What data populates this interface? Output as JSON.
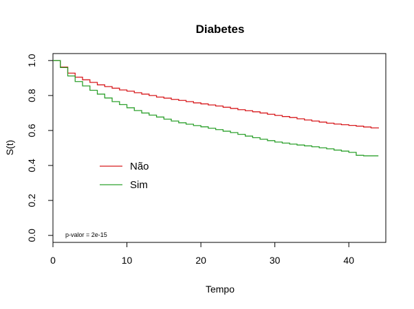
{
  "chart_data": {
    "type": "line",
    "step": true,
    "title": "Diabetes",
    "xlabel": "Tempo",
    "ylabel": "S(t)",
    "xlim": [
      0,
      45
    ],
    "ylim": [
      -0.04,
      1.04
    ],
    "xticks": [
      0,
      10,
      20,
      30,
      40
    ],
    "xtick_labels": [
      "0",
      "10",
      "20",
      "30",
      "40"
    ],
    "yticks": [
      0,
      0.2,
      0.4,
      0.6,
      0.8,
      1
    ],
    "ytick_labels": [
      "0.0",
      "0.2",
      "0.4",
      "0.6",
      "0.8",
      "1.0"
    ],
    "grid": false,
    "legend_position": "left-center",
    "annotation": "p-valor = 2e-15",
    "series": [
      {
        "name": "Não",
        "color": "#d7191c",
        "x": [
          0,
          1,
          2,
          3,
          4,
          5,
          6,
          7,
          8,
          9,
          10,
          11,
          12,
          13,
          14,
          15,
          16,
          17,
          18,
          19,
          20,
          21,
          22,
          23,
          24,
          25,
          26,
          27,
          28,
          29,
          30,
          31,
          32,
          33,
          34,
          35,
          36,
          37,
          38,
          39,
          40,
          41,
          42,
          43,
          44
        ],
        "y": [
          1.0,
          0.963,
          0.928,
          0.905,
          0.89,
          0.875,
          0.861,
          0.851,
          0.842,
          0.832,
          0.825,
          0.816,
          0.808,
          0.8,
          0.791,
          0.785,
          0.778,
          0.772,
          0.765,
          0.758,
          0.752,
          0.746,
          0.74,
          0.733,
          0.726,
          0.719,
          0.713,
          0.707,
          0.7,
          0.693,
          0.686,
          0.68,
          0.674,
          0.667,
          0.66,
          0.654,
          0.648,
          0.642,
          0.637,
          0.633,
          0.629,
          0.625,
          0.62,
          0.615,
          0.612
        ]
      },
      {
        "name": "Sim",
        "color": "#2ca02c",
        "x": [
          0,
          1,
          2,
          3,
          4,
          5,
          6,
          7,
          8,
          9,
          10,
          11,
          12,
          13,
          14,
          15,
          16,
          17,
          18,
          19,
          20,
          21,
          22,
          23,
          24,
          25,
          26,
          27,
          28,
          29,
          30,
          31,
          32,
          33,
          34,
          35,
          36,
          37,
          38,
          39,
          40,
          41,
          42,
          43,
          44
        ],
        "y": [
          1.0,
          0.96,
          0.912,
          0.88,
          0.855,
          0.83,
          0.808,
          0.786,
          0.765,
          0.748,
          0.73,
          0.714,
          0.7,
          0.688,
          0.677,
          0.665,
          0.654,
          0.644,
          0.636,
          0.628,
          0.621,
          0.613,
          0.605,
          0.596,
          0.588,
          0.578,
          0.568,
          0.559,
          0.55,
          0.542,
          0.534,
          0.528,
          0.522,
          0.517,
          0.512,
          0.507,
          0.501,
          0.495,
          0.488,
          0.482,
          0.475,
          0.458,
          0.455,
          0.455,
          0.455
        ]
      }
    ]
  }
}
